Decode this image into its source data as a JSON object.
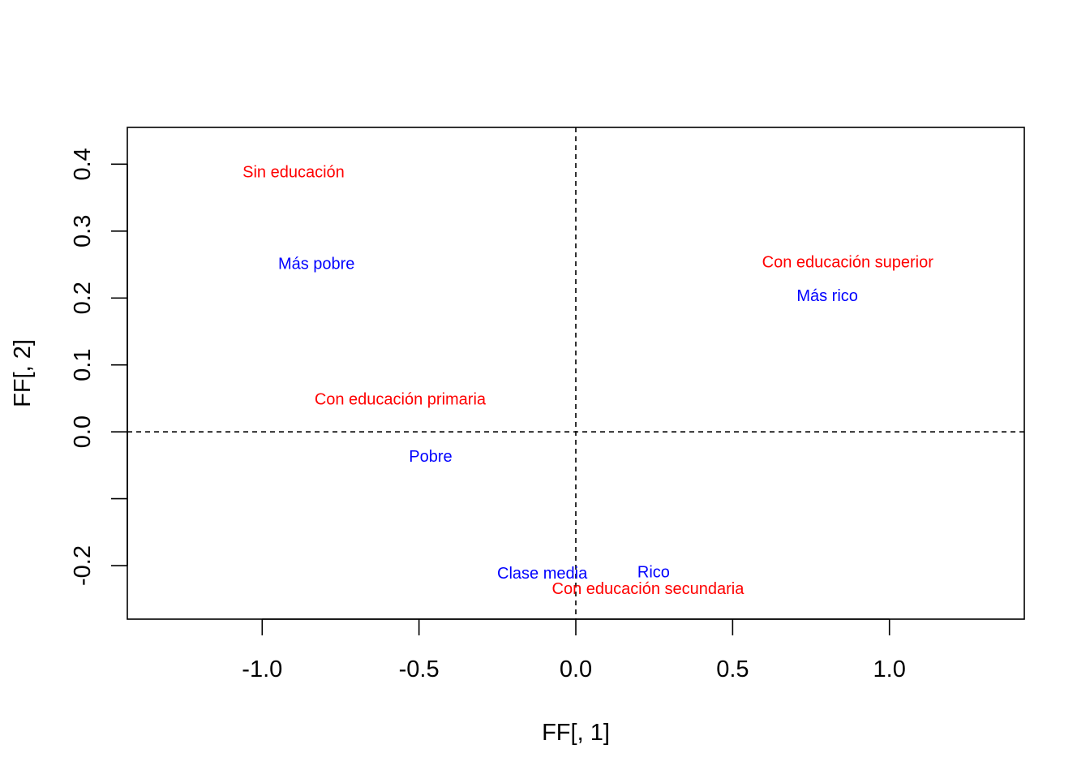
{
  "chart_data": {
    "type": "scatter",
    "title": "",
    "xlabel": "FF[, 1]",
    "ylabel": "FF[, 2]",
    "xlim": [
      -1.43,
      1.43
    ],
    "ylim": [
      -0.28,
      0.455
    ],
    "grid": false,
    "reference_lines": {
      "x": 0,
      "y": 0,
      "style": "dashed"
    },
    "x_ticks": [
      -1.0,
      -0.5,
      0.0,
      0.5,
      1.0
    ],
    "x_tick_labels": [
      "-1.0",
      "-0.5",
      "0.0",
      "0.5",
      "1.0"
    ],
    "y_ticks": [
      -0.2,
      -0.1,
      0.0,
      0.1,
      0.2,
      0.3,
      0.4
    ],
    "y_tick_labels": [
      "-0.2",
      "",
      "0.0",
      "0.1",
      "0.2",
      "0.3",
      "0.4"
    ],
    "series": [
      {
        "color": "#ff0000",
        "points": [
          {
            "label": "Sin educación",
            "x": -0.9,
            "y": 0.389
          },
          {
            "label": "Con educación superior",
            "x": 0.867,
            "y": 0.254
          },
          {
            "label": "Con educación primaria",
            "x": -0.56,
            "y": 0.049
          },
          {
            "label": "Con educación secundaria",
            "x": 0.23,
            "y": -0.234
          }
        ]
      },
      {
        "color": "#0000ff",
        "points": [
          {
            "label": "Más pobre",
            "x": -0.827,
            "y": 0.252
          },
          {
            "label": "Más rico",
            "x": 0.802,
            "y": 0.204
          },
          {
            "label": "Pobre",
            "x": -0.463,
            "y": -0.036
          },
          {
            "label": "Clase media",
            "x": -0.107,
            "y": -0.211
          },
          {
            "label": "Rico",
            "x": 0.248,
            "y": -0.209
          }
        ]
      }
    ]
  }
}
